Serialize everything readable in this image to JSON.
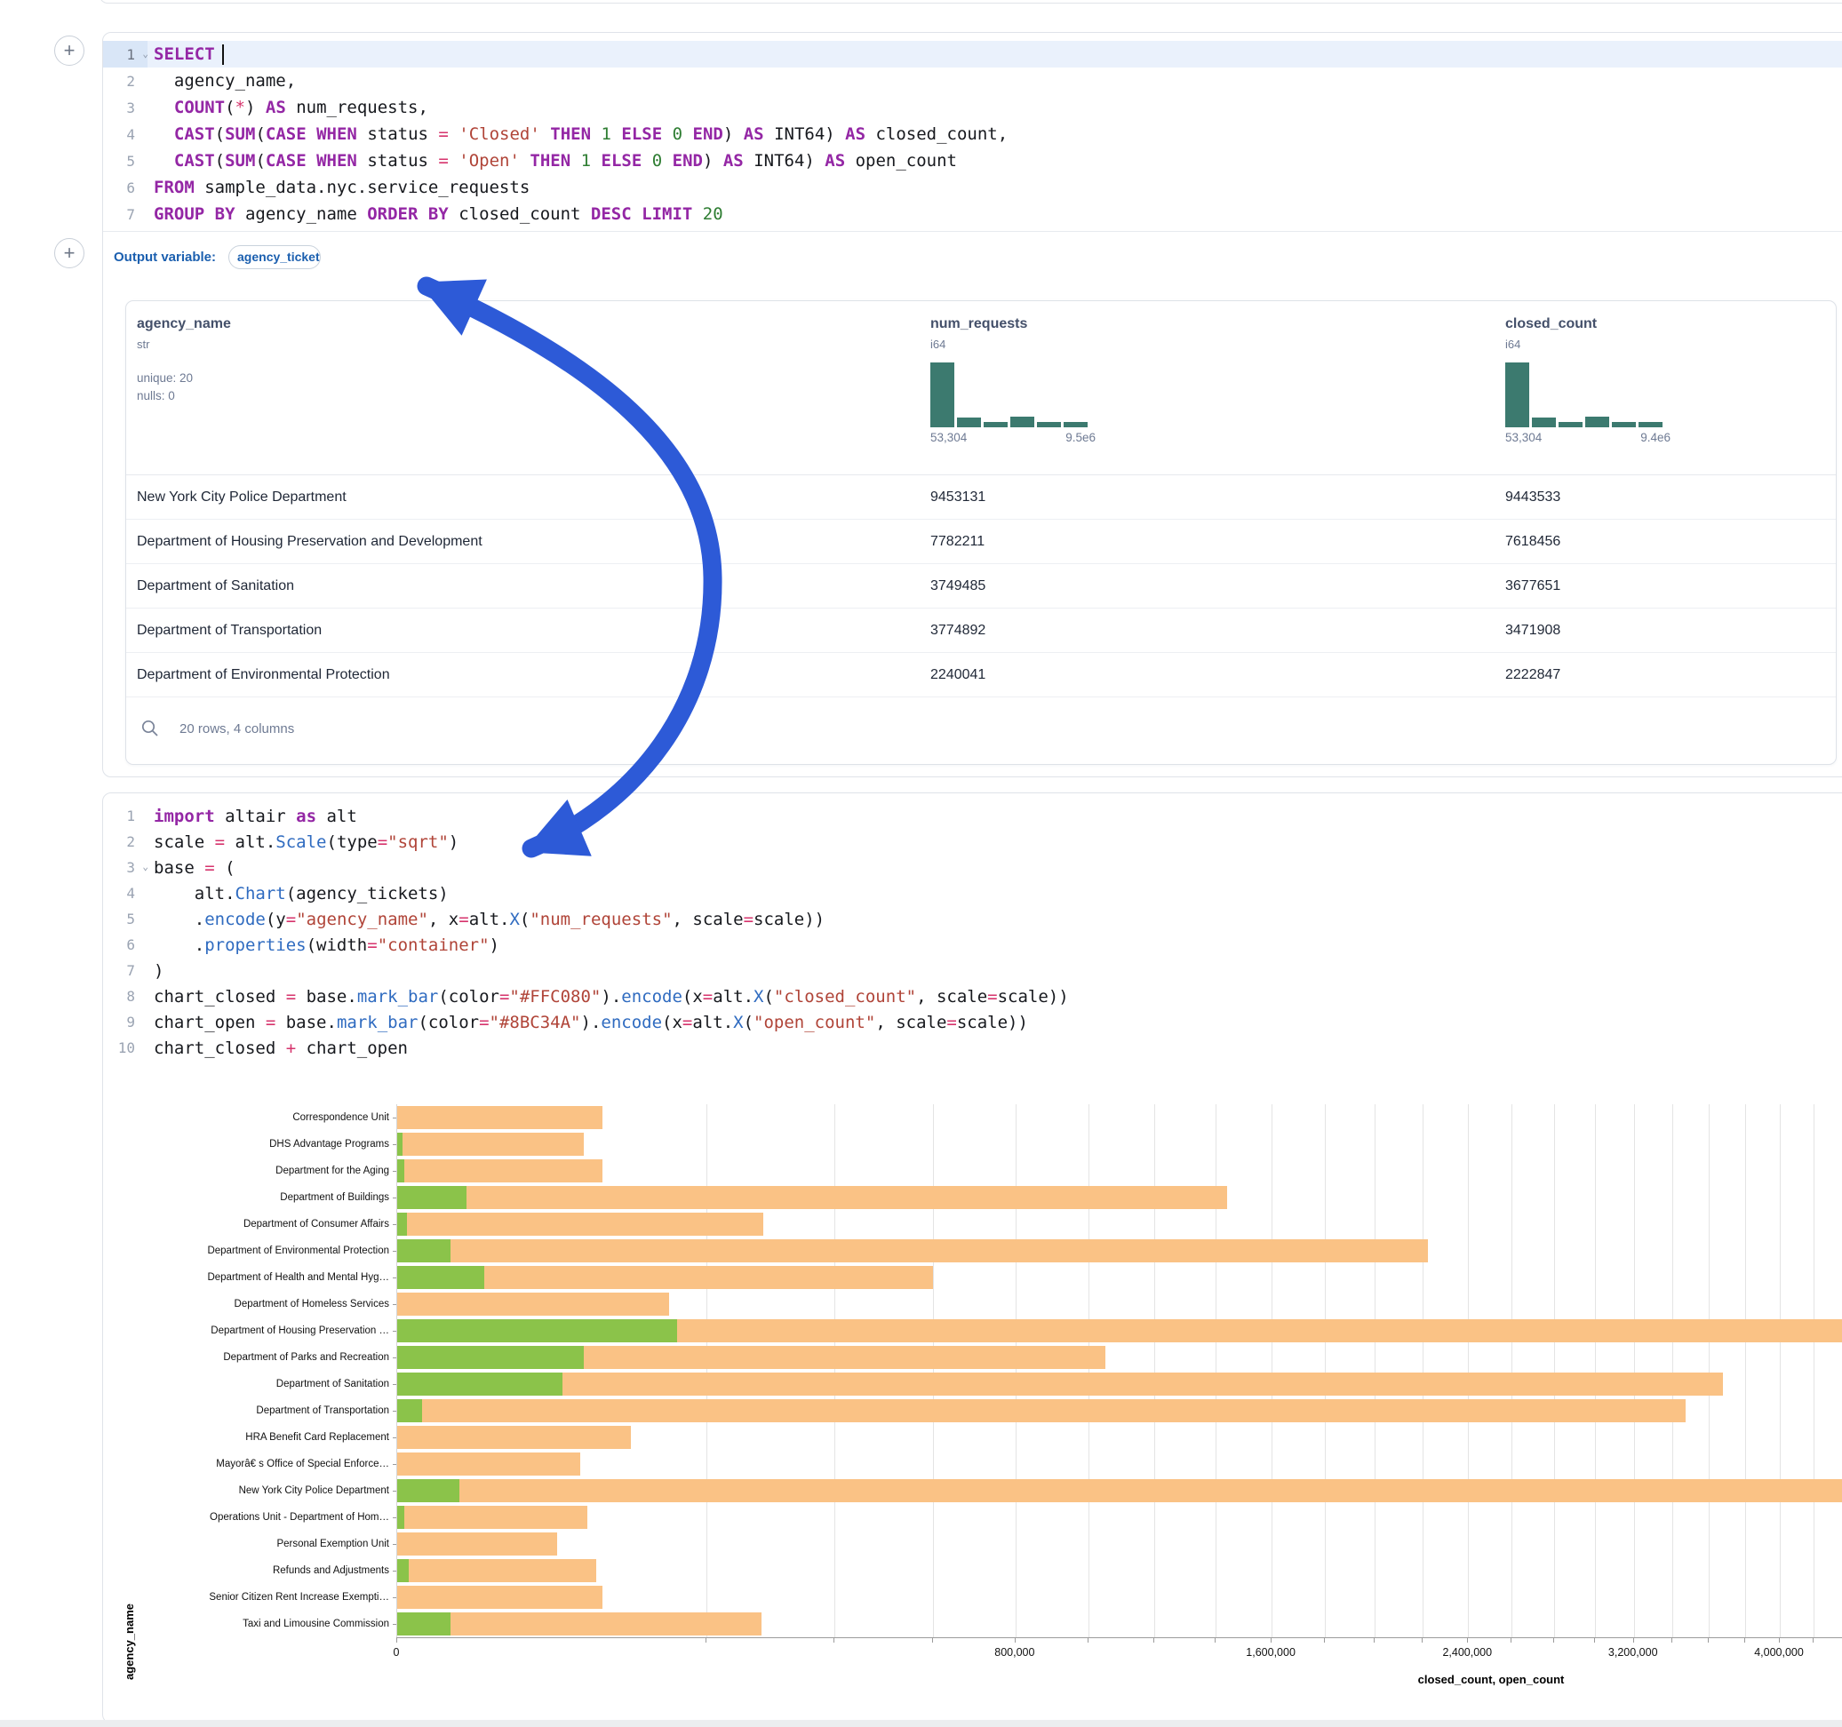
{
  "sql_cell": {
    "add_button": "+",
    "output_variable": {
      "label": "Output variable:",
      "value": "agency_tickets"
    },
    "lines": [
      {
        "n": "1",
        "caret": true,
        "current": true,
        "cursor": true,
        "tokens": [
          {
            "t": "SELECT",
            "c": "kw"
          }
        ]
      },
      {
        "n": "2",
        "tokens": [
          {
            "t": "  agency_name,",
            "c": "pl"
          }
        ]
      },
      {
        "n": "3",
        "tokens": [
          {
            "t": "  ",
            "c": "pl"
          },
          {
            "t": "COUNT",
            "c": "kw"
          },
          {
            "t": "(",
            "c": "pl"
          },
          {
            "t": "*",
            "c": "op"
          },
          {
            "t": ") ",
            "c": "pl"
          },
          {
            "t": "AS",
            "c": "kw"
          },
          {
            "t": " num_requests,",
            "c": "pl"
          }
        ]
      },
      {
        "n": "4",
        "tokens": [
          {
            "t": "  ",
            "c": "pl"
          },
          {
            "t": "CAST",
            "c": "kw"
          },
          {
            "t": "(",
            "c": "pl"
          },
          {
            "t": "SUM",
            "c": "kw"
          },
          {
            "t": "(",
            "c": "pl"
          },
          {
            "t": "CASE",
            "c": "kw"
          },
          {
            "t": " ",
            "c": "pl"
          },
          {
            "t": "WHEN",
            "c": "kw"
          },
          {
            "t": " status ",
            "c": "pl"
          },
          {
            "t": "=",
            "c": "op"
          },
          {
            "t": " ",
            "c": "pl"
          },
          {
            "t": "'Closed'",
            "c": "str"
          },
          {
            "t": " ",
            "c": "pl"
          },
          {
            "t": "THEN",
            "c": "kw"
          },
          {
            "t": " ",
            "c": "pl"
          },
          {
            "t": "1",
            "c": "num"
          },
          {
            "t": " ",
            "c": "pl"
          },
          {
            "t": "ELSE",
            "c": "kw"
          },
          {
            "t": " ",
            "c": "pl"
          },
          {
            "t": "0",
            "c": "num"
          },
          {
            "t": " ",
            "c": "pl"
          },
          {
            "t": "END",
            "c": "kw"
          },
          {
            "t": ") ",
            "c": "pl"
          },
          {
            "t": "AS",
            "c": "kw"
          },
          {
            "t": " INT64) ",
            "c": "pl"
          },
          {
            "t": "AS",
            "c": "kw"
          },
          {
            "t": " closed_count,",
            "c": "pl"
          }
        ]
      },
      {
        "n": "5",
        "tokens": [
          {
            "t": "  ",
            "c": "pl"
          },
          {
            "t": "CAST",
            "c": "kw"
          },
          {
            "t": "(",
            "c": "pl"
          },
          {
            "t": "SUM",
            "c": "kw"
          },
          {
            "t": "(",
            "c": "pl"
          },
          {
            "t": "CASE",
            "c": "kw"
          },
          {
            "t": " ",
            "c": "pl"
          },
          {
            "t": "WHEN",
            "c": "kw"
          },
          {
            "t": " status ",
            "c": "pl"
          },
          {
            "t": "=",
            "c": "op"
          },
          {
            "t": " ",
            "c": "pl"
          },
          {
            "t": "'Open'",
            "c": "str"
          },
          {
            "t": " ",
            "c": "pl"
          },
          {
            "t": "THEN",
            "c": "kw"
          },
          {
            "t": " ",
            "c": "pl"
          },
          {
            "t": "1",
            "c": "num"
          },
          {
            "t": " ",
            "c": "pl"
          },
          {
            "t": "ELSE",
            "c": "kw"
          },
          {
            "t": " ",
            "c": "pl"
          },
          {
            "t": "0",
            "c": "num"
          },
          {
            "t": " ",
            "c": "pl"
          },
          {
            "t": "END",
            "c": "kw"
          },
          {
            "t": ") ",
            "c": "pl"
          },
          {
            "t": "AS",
            "c": "kw"
          },
          {
            "t": " INT64) ",
            "c": "pl"
          },
          {
            "t": "AS",
            "c": "kw"
          },
          {
            "t": " open_count",
            "c": "pl"
          }
        ]
      },
      {
        "n": "6",
        "tokens": [
          {
            "t": "FROM",
            "c": "kw"
          },
          {
            "t": " sample_data.nyc.service_requests",
            "c": "pl"
          }
        ]
      },
      {
        "n": "7",
        "tokens": [
          {
            "t": "GROUP BY",
            "c": "kw"
          },
          {
            "t": " agency_name ",
            "c": "pl"
          },
          {
            "t": "ORDER BY",
            "c": "kw"
          },
          {
            "t": " closed_count ",
            "c": "pl"
          },
          {
            "t": "DESC",
            "c": "kw"
          },
          {
            "t": " ",
            "c": "pl"
          },
          {
            "t": "LIMIT",
            "c": "kw"
          },
          {
            "t": " ",
            "c": "pl"
          },
          {
            "t": "20",
            "c": "num"
          }
        ]
      }
    ]
  },
  "table": {
    "columns": [
      {
        "name": "agency_name",
        "type": "str",
        "stats": [
          "unique: 20",
          "nulls: 0"
        ]
      },
      {
        "name": "num_requests",
        "type": "i64",
        "hist": {
          "bars": [
            1,
            0.15,
            0.08,
            0.16,
            0.08,
            0.08
          ],
          "min_label": "53,304",
          "max_label": "9.5e6"
        }
      },
      {
        "name": "closed_count",
        "type": "i64",
        "hist": {
          "bars": [
            1,
            0.15,
            0.08,
            0.16,
            0.08,
            0.08
          ],
          "min_label": "53,304",
          "max_label": "9.4e6"
        }
      }
    ],
    "rows": [
      {
        "agency_name": "New York City Police Department",
        "num_requests": "9453131",
        "closed_count": "9443533"
      },
      {
        "agency_name": "Department of Housing Preservation and Development",
        "num_requests": "7782211",
        "closed_count": "7618456"
      },
      {
        "agency_name": "Department of Sanitation",
        "num_requests": "3749485",
        "closed_count": "3677651"
      },
      {
        "agency_name": "Department of Transportation",
        "num_requests": "3774892",
        "closed_count": "3471908"
      },
      {
        "agency_name": "Department of Environmental Protection",
        "num_requests": "2240041",
        "closed_count": "2222847"
      }
    ],
    "footer": "20 rows, 4 columns"
  },
  "python_cell": {
    "add_button": "+",
    "lines": [
      {
        "n": "1",
        "tokens": [
          {
            "t": "import",
            "c": "kw"
          },
          {
            "t": " altair ",
            "c": "pl"
          },
          {
            "t": "as",
            "c": "kw"
          },
          {
            "t": " alt",
            "c": "pl"
          }
        ]
      },
      {
        "n": "2",
        "tokens": [
          {
            "t": "scale ",
            "c": "pl"
          },
          {
            "t": "=",
            "c": "op"
          },
          {
            "t": " alt.",
            "c": "pl"
          },
          {
            "t": "Scale",
            "c": "fn"
          },
          {
            "t": "(type",
            "c": "pl"
          },
          {
            "t": "=",
            "c": "op"
          },
          {
            "t": "\"sqrt\"",
            "c": "str"
          },
          {
            "t": ")",
            "c": "pl"
          }
        ]
      },
      {
        "n": "3",
        "caret": true,
        "tokens": [
          {
            "t": "base ",
            "c": "pl"
          },
          {
            "t": "=",
            "c": "op"
          },
          {
            "t": " (",
            "c": "pl"
          }
        ]
      },
      {
        "n": "4",
        "tokens": [
          {
            "t": "    alt.",
            "c": "pl"
          },
          {
            "t": "Chart",
            "c": "fn"
          },
          {
            "t": "(agency_tickets)",
            "c": "pl"
          }
        ]
      },
      {
        "n": "5",
        "tokens": [
          {
            "t": "    .",
            "c": "pl"
          },
          {
            "t": "encode",
            "c": "fn"
          },
          {
            "t": "(y",
            "c": "pl"
          },
          {
            "t": "=",
            "c": "op"
          },
          {
            "t": "\"agency_name\"",
            "c": "str"
          },
          {
            "t": ", x",
            "c": "pl"
          },
          {
            "t": "=",
            "c": "op"
          },
          {
            "t": "alt.",
            "c": "pl"
          },
          {
            "t": "X",
            "c": "fn"
          },
          {
            "t": "(",
            "c": "pl"
          },
          {
            "t": "\"num_requests\"",
            "c": "str"
          },
          {
            "t": ", scale",
            "c": "pl"
          },
          {
            "t": "=",
            "c": "op"
          },
          {
            "t": "scale))",
            "c": "pl"
          }
        ]
      },
      {
        "n": "6",
        "tokens": [
          {
            "t": "    .",
            "c": "pl"
          },
          {
            "t": "properties",
            "c": "fn"
          },
          {
            "t": "(width",
            "c": "pl"
          },
          {
            "t": "=",
            "c": "op"
          },
          {
            "t": "\"container\"",
            "c": "str"
          },
          {
            "t": ")",
            "c": "pl"
          }
        ]
      },
      {
        "n": "7",
        "tokens": [
          {
            "t": ")",
            "c": "pl"
          }
        ]
      },
      {
        "n": "8",
        "tokens": [
          {
            "t": "chart_closed ",
            "c": "pl"
          },
          {
            "t": "=",
            "c": "op"
          },
          {
            "t": " base.",
            "c": "pl"
          },
          {
            "t": "mark_bar",
            "c": "fn"
          },
          {
            "t": "(color",
            "c": "pl"
          },
          {
            "t": "=",
            "c": "op"
          },
          {
            "t": "\"#FFC080\"",
            "c": "str"
          },
          {
            "t": ").",
            "c": "pl"
          },
          {
            "t": "encode",
            "c": "fn"
          },
          {
            "t": "(x",
            "c": "pl"
          },
          {
            "t": "=",
            "c": "op"
          },
          {
            "t": "alt.",
            "c": "pl"
          },
          {
            "t": "X",
            "c": "fn"
          },
          {
            "t": "(",
            "c": "pl"
          },
          {
            "t": "\"closed_count\"",
            "c": "str"
          },
          {
            "t": ", scale",
            "c": "pl"
          },
          {
            "t": "=",
            "c": "op"
          },
          {
            "t": "scale))",
            "c": "pl"
          }
        ]
      },
      {
        "n": "9",
        "tokens": [
          {
            "t": "chart_open ",
            "c": "pl"
          },
          {
            "t": "=",
            "c": "op"
          },
          {
            "t": " base.",
            "c": "pl"
          },
          {
            "t": "mark_bar",
            "c": "fn"
          },
          {
            "t": "(color",
            "c": "pl"
          },
          {
            "t": "=",
            "c": "op"
          },
          {
            "t": "\"#8BC34A\"",
            "c": "str"
          },
          {
            "t": ").",
            "c": "pl"
          },
          {
            "t": "encode",
            "c": "fn"
          },
          {
            "t": "(x",
            "c": "pl"
          },
          {
            "t": "=",
            "c": "op"
          },
          {
            "t": "alt.",
            "c": "pl"
          },
          {
            "t": "X",
            "c": "fn"
          },
          {
            "t": "(",
            "c": "pl"
          },
          {
            "t": "\"open_count\"",
            "c": "str"
          },
          {
            "t": ", scale",
            "c": "pl"
          },
          {
            "t": "=",
            "c": "op"
          },
          {
            "t": "scale))",
            "c": "pl"
          }
        ]
      },
      {
        "n": "10",
        "tokens": [
          {
            "t": "chart_closed ",
            "c": "pl"
          },
          {
            "t": "+",
            "c": "op"
          },
          {
            "t": " chart_open",
            "c": "pl"
          }
        ]
      }
    ]
  },
  "chart_data": {
    "type": "bar",
    "orientation": "horizontal",
    "x_scale": "sqrt",
    "title": "",
    "xlabel": "closed_count, open_count",
    "ylabel": "agency_name",
    "categories": [
      "Correspondence Unit",
      "DHS Advantage Programs",
      "Department for the Aging",
      "Department of Buildings",
      "Department of Consumer Affairs",
      "Department of Environmental Protection",
      "Department of Health and Mental Hyg…",
      "Department of Homeless Services",
      "Department of Housing Preservation …",
      "Department of Parks and Recreation",
      "Department of Sanitation",
      "Department of Transportation",
      "HRA Benefit Card Replacement",
      "Mayorâ€ s Office of Special Enforce…",
      "New York City Police Department",
      "Operations Unit - Department of Hom…",
      "Personal Exemption Unit",
      "Refunds and Adjustments",
      "Senior Citizen Rent Increase Exempti…",
      "Taxi and Limousine Commission"
    ],
    "series": [
      {
        "name": "closed_count",
        "color": "#FAC285",
        "values": [
          88000,
          73000,
          88000,
          1440000,
          280000,
          2222847,
          600000,
          155000,
          7618456,
          1050000,
          3677651,
          3471908,
          114000,
          70000,
          9443533,
          76000,
          53304,
          83000,
          88000,
          278000
        ]
      },
      {
        "name": "open_count",
        "color": "#8BC34A",
        "values": [
          0,
          50,
          100,
          10000,
          200,
          6000,
          16000,
          0,
          163755,
          73000,
          57000,
          1300,
          0,
          0,
          8000,
          100,
          0,
          300,
          0,
          6000
        ]
      }
    ],
    "x_tick_values": [
      0,
      800000,
      1600000,
      2400000,
      3200000,
      4000000
    ],
    "x_tick_labels": [
      "0",
      "800,000",
      "1,600,000",
      "2,400,000",
      "3,200,000",
      "4,000,000"
    ],
    "grid_step": 200000,
    "grid_on": true
  },
  "annotation": {
    "arrow_color": "#2D5AD7"
  }
}
